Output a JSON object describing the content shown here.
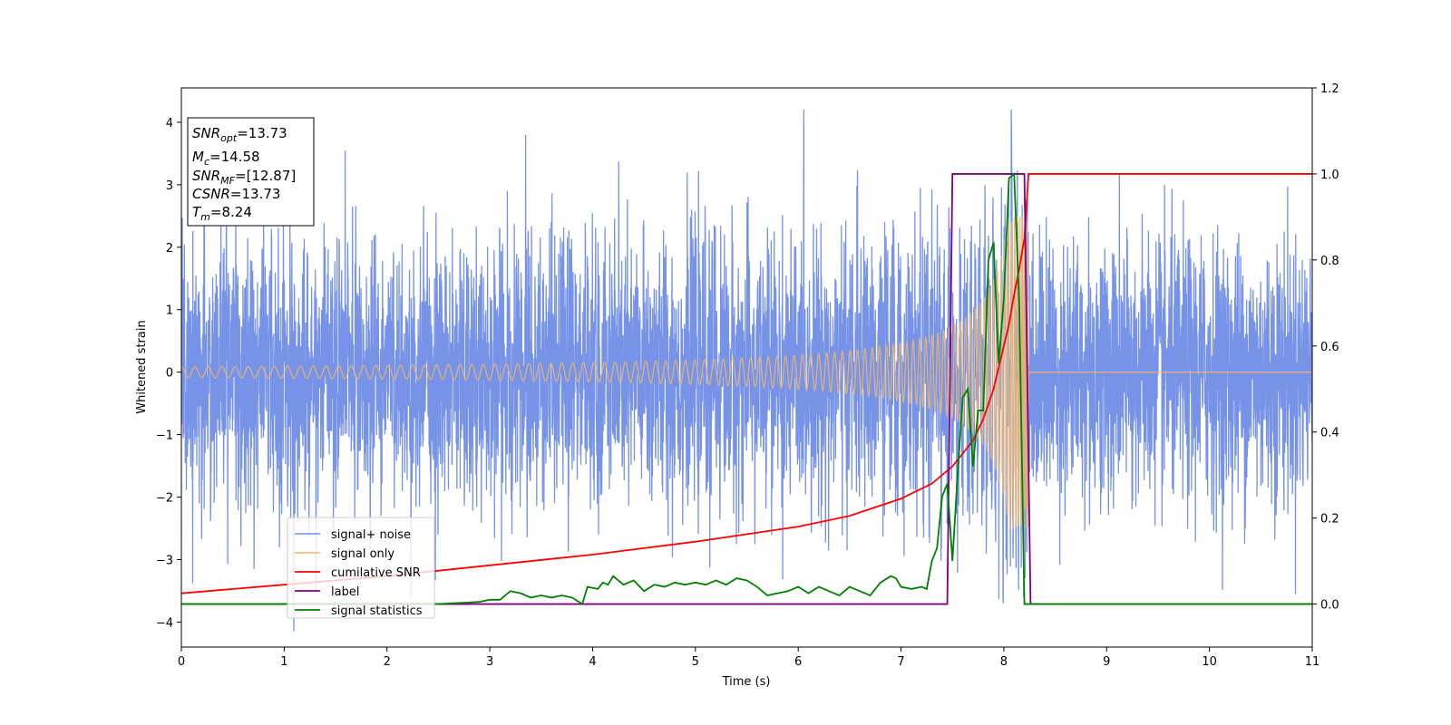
{
  "chart_data": {
    "type": "line",
    "xlabel": "Time (s)",
    "ylabel": "Whitened strain",
    "xlim": [
      0,
      11
    ],
    "ylim": [
      -4.4,
      4.55
    ],
    "y2lim": [
      -0.1,
      1.2
    ],
    "xticks": [
      "0",
      "1",
      "2",
      "3",
      "4",
      "5",
      "6",
      "7",
      "8",
      "9",
      "10",
      "11"
    ],
    "yticks": [
      "−4",
      "−3",
      "−2",
      "−1",
      "0",
      "1",
      "2",
      "3",
      "4"
    ],
    "y2ticks": [
      "0.0",
      "0.2",
      "0.4",
      "0.6",
      "0.8",
      "1.0",
      "1.2"
    ],
    "annotations": {
      "snr_opt": "SNR_opt=13.73",
      "mc": "M_c=14.58",
      "snr_mf": "SNR_MF=[12.87]",
      "csnr": "CSNR=13.73",
      "tm": "T_m=8.24"
    },
    "series": [
      {
        "name": "signal+ noise",
        "axis": "left",
        "color": "#6f8de6",
        "description": "whitened white noise, std ~1, spikes up to ~±4",
        "noise_std": 1.0,
        "x_range": [
          0,
          11
        ]
      },
      {
        "name": "signal only",
        "axis": "left",
        "color": "#f0b56b",
        "description": "chirp, amplitude growing to ~2.5 at merger near t=8.24, zero afterwards",
        "merger_time": 8.24,
        "peak_amplitude": 2.5
      },
      {
        "name": "cumilative SNR",
        "axis": "right",
        "color": "#ff0000",
        "x": [
          0,
          1,
          2,
          3,
          4,
          5,
          6,
          6.5,
          7,
          7.3,
          7.5,
          7.7,
          7.8,
          7.9,
          8.0,
          8.05,
          8.1,
          8.15,
          8.2,
          8.22,
          8.24,
          11
        ],
        "values": [
          0.025,
          0.045,
          0.065,
          0.09,
          0.115,
          0.145,
          0.18,
          0.205,
          0.245,
          0.28,
          0.32,
          0.38,
          0.43,
          0.5,
          0.6,
          0.65,
          0.72,
          0.78,
          0.85,
          0.92,
          1.0,
          1.0
        ]
      },
      {
        "name": "label",
        "axis": "right",
        "color": "#800080",
        "x": [
          0,
          7.45,
          7.5,
          8.2,
          8.26,
          11
        ],
        "values": [
          0.0,
          0.0,
          1.0,
          1.0,
          0.0,
          0.0
        ]
      },
      {
        "name": "signal statistics",
        "axis": "right",
        "color": "#008000",
        "x": [
          0,
          0.5,
          1,
          1.5,
          2,
          2.5,
          2.9,
          3.0,
          3.1,
          3.2,
          3.3,
          3.4,
          3.5,
          3.6,
          3.7,
          3.8,
          3.9,
          3.95,
          4.05,
          4.1,
          4.15,
          4.2,
          4.3,
          4.4,
          4.5,
          4.6,
          4.7,
          4.8,
          4.9,
          5.0,
          5.1,
          5.2,
          5.3,
          5.4,
          5.5,
          5.6,
          5.7,
          5.8,
          5.9,
          6.0,
          6.1,
          6.2,
          6.3,
          6.4,
          6.5,
          6.6,
          6.7,
          6.8,
          6.9,
          6.95,
          7.0,
          7.1,
          7.2,
          7.25,
          7.3,
          7.35,
          7.4,
          7.45,
          7.5,
          7.55,
          7.6,
          7.65,
          7.7,
          7.75,
          7.8,
          7.85,
          7.9,
          7.95,
          8.0,
          8.05,
          8.1,
          8.15,
          8.2,
          8.25,
          8.3,
          11
        ],
        "values": [
          0.0,
          0.0,
          0.0,
          0.0,
          0.0,
          0.0,
          0.005,
          0.01,
          0.01,
          0.03,
          0.025,
          0.015,
          0.02,
          0.015,
          0.02,
          0.015,
          0.0,
          0.04,
          0.035,
          0.05,
          0.045,
          0.065,
          0.045,
          0.055,
          0.03,
          0.045,
          0.04,
          0.05,
          0.045,
          0.05,
          0.045,
          0.055,
          0.045,
          0.06,
          0.055,
          0.04,
          0.02,
          0.025,
          0.03,
          0.04,
          0.025,
          0.04,
          0.03,
          0.02,
          0.04,
          0.03,
          0.02,
          0.05,
          0.065,
          0.06,
          0.04,
          0.035,
          0.04,
          0.035,
          0.1,
          0.13,
          0.25,
          0.28,
          0.1,
          0.3,
          0.48,
          0.5,
          0.32,
          0.45,
          0.45,
          0.8,
          0.84,
          0.56,
          0.71,
          0.99,
          1.0,
          0.7,
          0.0,
          0.0,
          0.0,
          0.0
        ]
      }
    ],
    "legend": {
      "location": "lower-left",
      "entries": [
        "signal+ noise",
        "signal only",
        "cumilative SNR",
        "label",
        "signal statistics"
      ]
    }
  }
}
